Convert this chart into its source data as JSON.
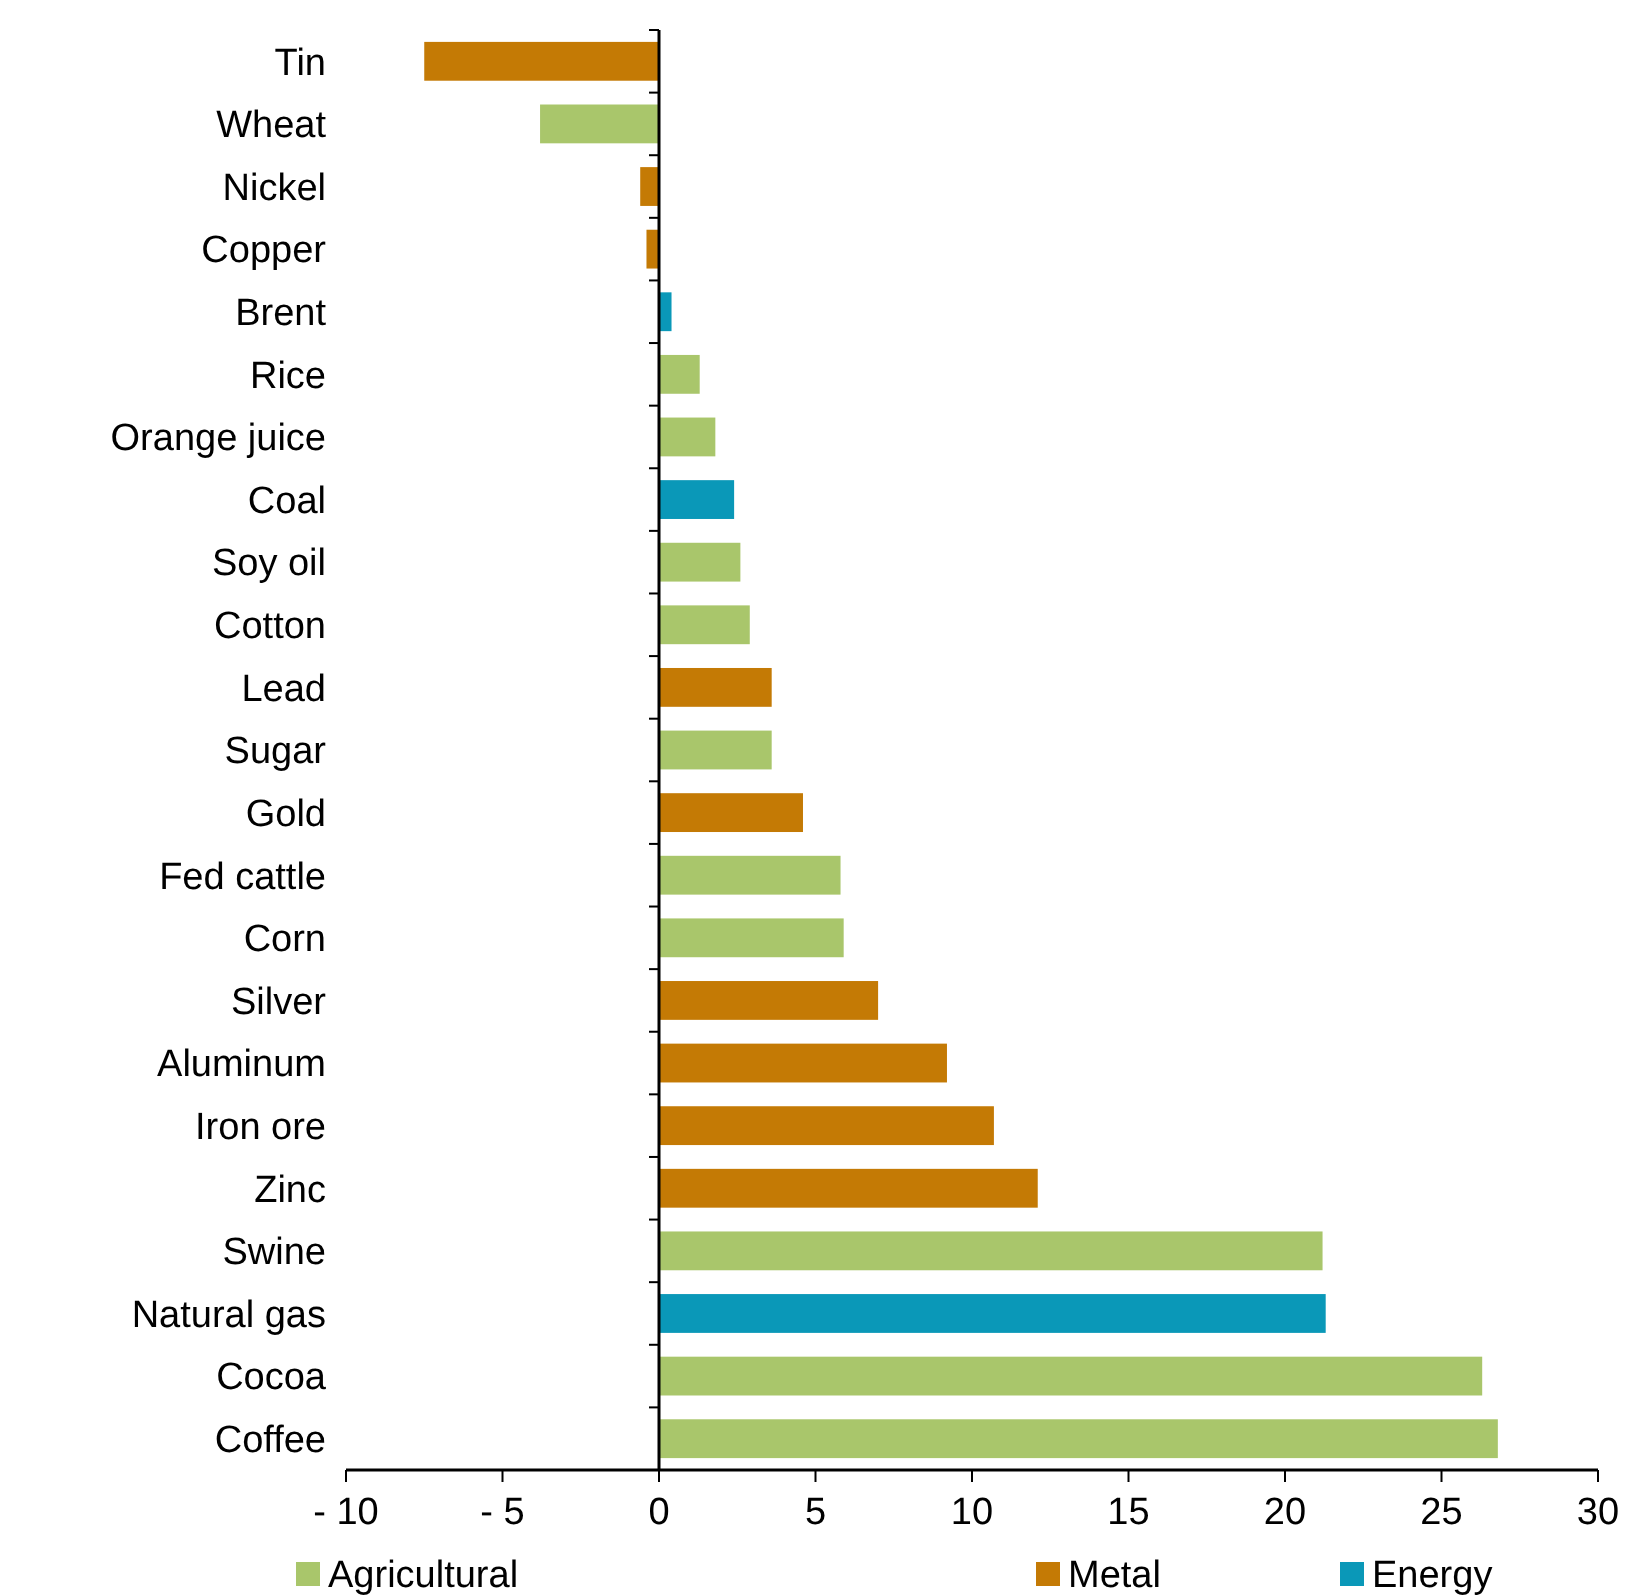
{
  "chart_data": {
    "type": "bar",
    "orientation": "horizontal",
    "legend": "bottom",
    "categories": [
      "Tin",
      "Wheat",
      "Nickel",
      "Copper",
      "Brent",
      "Rice",
      "Orange juice",
      "Coal",
      "Soy oil",
      "Cotton",
      "Lead",
      "Sugar",
      "Gold",
      "Fed cattle",
      "Corn",
      "Silver",
      "Aluminum",
      "Iron ore",
      "Zinc",
      "Swine",
      "Natural gas",
      "Cocoa",
      "Coffee"
    ],
    "series": [
      {
        "name": "Agricultural",
        "color": "#a9c66b",
        "values": [
          null,
          -3.8,
          null,
          null,
          null,
          1.3,
          1.8,
          null,
          2.6,
          2.9,
          null,
          3.6,
          null,
          5.8,
          5.9,
          null,
          null,
          null,
          null,
          21.2,
          null,
          26.3,
          26.8
        ]
      },
      {
        "name": "Metal",
        "color": "#c47a05",
        "values": [
          -7.5,
          null,
          -0.6,
          -0.4,
          null,
          null,
          null,
          null,
          null,
          null,
          3.6,
          null,
          4.6,
          null,
          null,
          7.0,
          9.2,
          10.7,
          12.1,
          null,
          null,
          null,
          null
        ]
      },
      {
        "name": "Energy",
        "color": "#0a98b8",
        "values": [
          null,
          null,
          null,
          null,
          0.4,
          null,
          null,
          2.4,
          null,
          null,
          null,
          null,
          null,
          null,
          null,
          null,
          null,
          null,
          null,
          null,
          21.3,
          null,
          null
        ]
      }
    ],
    "xlim": [
      -10,
      30
    ],
    "xticks": [
      {
        "value": -10,
        "label": "- 10"
      },
      {
        "value": -5,
        "label": "- 5"
      },
      0,
      5,
      10,
      15,
      20,
      25,
      30
    ]
  }
}
